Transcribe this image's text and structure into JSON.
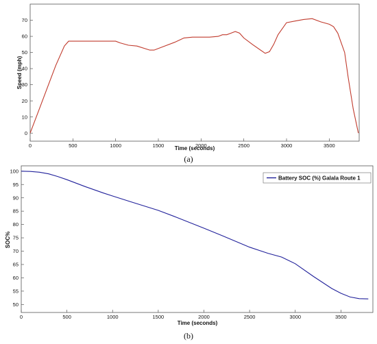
{
  "chart_data": [
    {
      "type": "line",
      "caption": "(a)",
      "xlabel": "Time (seconds)",
      "ylabel": "Speed (mph)",
      "xlim": [
        0,
        3850
      ],
      "ylim": [
        -5,
        80
      ],
      "xticks": [
        0,
        500,
        1000,
        1500,
        2000,
        2500,
        3000,
        3500
      ],
      "yticks": [
        0,
        10,
        20,
        30,
        40,
        50,
        60,
        70
      ],
      "grid": false,
      "line_color": "#c0392b",
      "series": [
        {
          "x": [
            0,
            100,
            200,
            300,
            400,
            450,
            500,
            600,
            800,
            1000,
            1050,
            1150,
            1250,
            1400,
            1450,
            1550,
            1700,
            1800,
            1900,
            2100,
            2200,
            2250,
            2300,
            2350,
            2400,
            2450,
            2500,
            2600,
            2750,
            2800,
            2850,
            2900,
            3000,
            3100,
            3200,
            3300,
            3400,
            3500,
            3550,
            3600,
            3680,
            3720,
            3780,
            3840
          ],
          "y": [
            0,
            14,
            28,
            42,
            54,
            57,
            57,
            57,
            57,
            57,
            56,
            54.5,
            54,
            51.5,
            51.5,
            53.5,
            56.5,
            59,
            59.5,
            59.5,
            60,
            61,
            61,
            62,
            63,
            62,
            59,
            55,
            49.5,
            50.5,
            55,
            61,
            68.5,
            69.5,
            70.5,
            71,
            69,
            67.5,
            66,
            62,
            50,
            35,
            15,
            0
          ]
        }
      ]
    },
    {
      "type": "line",
      "caption": "(b)",
      "xlabel": "Time (seconds)",
      "ylabel": "SOC%",
      "xlim": [
        0,
        3850
      ],
      "ylim": [
        47,
        102
      ],
      "xticks": [
        0,
        500,
        1000,
        1500,
        2000,
        2500,
        3000,
        3500
      ],
      "yticks": [
        50,
        55,
        60,
        65,
        70,
        75,
        80,
        85,
        90,
        95,
        100
      ],
      "grid": false,
      "legend": "top-right",
      "line_color": "#1f1f9a",
      "series": [
        {
          "name": "Battery SOC (%) Galala Route 1",
          "x": [
            0,
            100,
            200,
            300,
            400,
            500,
            700,
            900,
            1000,
            1200,
            1500,
            1700,
            2000,
            2200,
            2500,
            2700,
            2850,
            3000,
            3200,
            3400,
            3500,
            3600,
            3700,
            3800
          ],
          "y": [
            100,
            99.9,
            99.6,
            99,
            98,
            96.8,
            94.2,
            91.8,
            90.7,
            88.5,
            85.3,
            82.7,
            78.6,
            75.8,
            71.5,
            69.2,
            67.8,
            65.3,
            60.5,
            56,
            54.2,
            52.8,
            52.2,
            52.1
          ]
        }
      ]
    }
  ]
}
